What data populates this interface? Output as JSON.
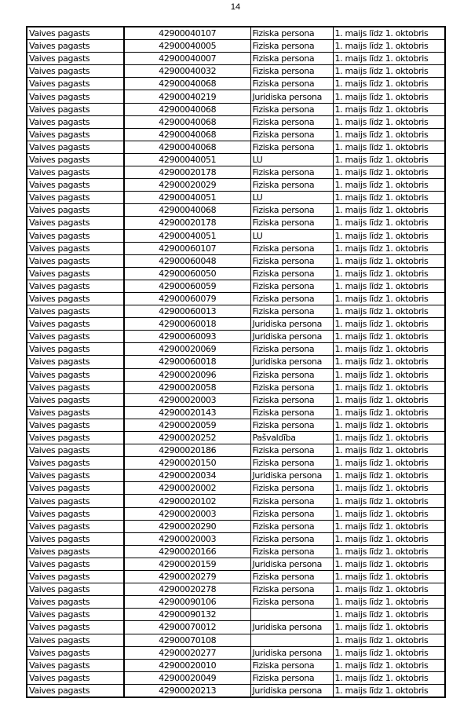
{
  "page_number": "14",
  "table": {
    "rows": [
      [
        "Vaives pagasts",
        "42900040107",
        "Fiziska persona",
        "1. maijs līdz 1. oktobris"
      ],
      [
        "Vaives pagasts",
        "42900040005",
        "Fiziska persona",
        "1. maijs līdz 1. oktobris"
      ],
      [
        "Vaives pagasts",
        "42900040007",
        "Fiziska persona",
        "1. maijs līdz 1. oktobris"
      ],
      [
        "Vaives pagasts",
        "42900040032",
        "Fiziska persona",
        "1. maijs līdz 1. oktobris"
      ],
      [
        "Vaives pagasts",
        "42900040068",
        "Fiziska persona",
        "1. maijs līdz 1. oktobris"
      ],
      [
        "Vaives pagasts",
        "42900040219",
        "Juridiska persona",
        "1. maijs līdz 1. oktobris"
      ],
      [
        "Vaives pagasts",
        "42900040068",
        "Fiziska persona",
        "1. maijs līdz 1. oktobris"
      ],
      [
        "Vaives pagasts",
        "42900040068",
        "Fiziska persona",
        "1. maijs līdz 1. oktobris"
      ],
      [
        "Vaives pagasts",
        "42900040068",
        "Fiziska persona",
        "1. maijs līdz 1. oktobris"
      ],
      [
        "Vaives pagasts",
        "42900040068",
        "Fiziska persona",
        "1. maijs līdz 1. oktobris"
      ],
      [
        "Vaives pagasts",
        "42900040051",
        "LU",
        "1. maijs līdz 1. oktobris"
      ],
      [
        "Vaives pagasts",
        "42900020178",
        "Fiziska persona",
        "1. maijs līdz 1. oktobris"
      ],
      [
        "Vaives pagasts",
        "42900020029",
        "Fiziska persona",
        "1. maijs līdz 1. oktobris"
      ],
      [
        "Vaives pagasts",
        "42900040051",
        "LU",
        "1. maijs līdz 1. oktobris"
      ],
      [
        "Vaives pagasts",
        "42900040068",
        "Fiziska persona",
        "1. maijs līdz 1. oktobris"
      ],
      [
        "Vaives pagasts",
        "42900020178",
        "Fiziska persona",
        "1. maijs līdz 1. oktobris"
      ],
      [
        "Vaives pagasts",
        "42900040051",
        "LU",
        "1. maijs līdz 1. oktobris"
      ],
      [
        "Vaives pagasts",
        "42900060107",
        "Fiziska persona",
        "1. maijs līdz 1. oktobris"
      ],
      [
        "Vaives pagasts",
        "42900060048",
        "Fiziska persona",
        "1. maijs līdz 1. oktobris"
      ],
      [
        "Vaives pagasts",
        "42900060050",
        "Fiziska persona",
        "1. maijs līdz 1. oktobris"
      ],
      [
        "Vaives pagasts",
        "42900060059",
        "Fiziska persona",
        "1. maijs līdz 1. oktobris"
      ],
      [
        "Vaives pagasts",
        "42900060079",
        "Fiziska persona",
        "1. maijs līdz 1. oktobris"
      ],
      [
        "Vaives pagasts",
        "42900060013",
        "Fiziska persona",
        "1. maijs līdz 1. oktobris"
      ],
      [
        "Vaives pagasts",
        "42900060018",
        "Juridiska persona",
        "1. maijs līdz 1. oktobris"
      ],
      [
        "Vaives pagasts",
        "42900060093",
        "Juridiska persona",
        "1. maijs līdz 1. oktobris"
      ],
      [
        "Vaives pagasts",
        "42900020069",
        "Fiziska persona",
        "1. maijs līdz 1. oktobris"
      ],
      [
        "Vaives pagasts",
        "42900060018",
        "Juridiska persona",
        "1. maijs līdz 1. oktobris"
      ],
      [
        "Vaives pagasts",
        "42900020096",
        "Fiziska persona",
        "1. maijs līdz 1. oktobris"
      ],
      [
        "Vaives pagasts",
        "42900020058",
        "Fiziska persona",
        "1. maijs līdz 1. oktobris"
      ],
      [
        "Vaives pagasts",
        "42900020003",
        "Fiziska persona",
        "1. maijs līdz 1. oktobris"
      ],
      [
        "Vaives pagasts",
        "42900020143",
        "Fiziska persona",
        "1. maijs līdz 1. oktobris"
      ],
      [
        "Vaives pagasts",
        "42900020059",
        "Fiziska persona",
        "1. maijs līdz 1. oktobris"
      ],
      [
        "Vaives pagasts",
        "42900020252",
        "Pašvaldība",
        "1. maijs līdz 1. oktobris"
      ],
      [
        "Vaives pagasts",
        "42900020186",
        "Fiziska persona",
        "1. maijs līdz 1. oktobris"
      ],
      [
        "Vaives pagasts",
        "42900020150",
        "Fiziska persona",
        "1. maijs līdz 1. oktobris"
      ],
      [
        "Vaives pagasts",
        "42900020034",
        "Juridiska persona",
        "1. maijs līdz 1. oktobris"
      ],
      [
        "Vaives pagasts",
        "42900020002",
        "Fiziska persona",
        "1. maijs līdz 1. oktobris"
      ],
      [
        "Vaives pagasts",
        "42900020102",
        "Fiziska persona",
        "1. maijs līdz 1. oktobris"
      ],
      [
        "Vaives pagasts",
        "42900020003",
        "Fiziska persona",
        "1. maijs līdz 1. oktobris"
      ],
      [
        "Vaives pagasts",
        "42900020290",
        "Fiziska persona",
        "1. maijs līdz 1. oktobris"
      ],
      [
        "Vaives pagasts",
        "42900020003",
        "Fiziska persona",
        "1. maijs līdz 1. oktobris"
      ],
      [
        "Vaives pagasts",
        "42900020166",
        "Fiziska persona",
        "1. maijs līdz 1. oktobris"
      ],
      [
        "Vaives pagasts",
        "42900020159",
        "Juridiska persona",
        "1. maijs līdz 1. oktobris"
      ],
      [
        "Vaives pagasts",
        "42900020279",
        "Fiziska persona",
        "1. maijs līdz 1. oktobris"
      ],
      [
        "Vaives pagasts",
        "42900020278",
        "Fiziska persona",
        "1. maijs līdz 1. oktobris"
      ],
      [
        "Vaives pagasts",
        "42900090106",
        "Fiziska persona",
        "1. maijs līdz 1. oktobris"
      ],
      [
        "Vaives pagasts",
        "42900090132",
        "",
        "1. maijs līdz 1. oktobris"
      ],
      [
        "Vaives pagasts",
        "42900070012",
        "Juridiska persona",
        "1. maijs līdz 1. oktobris"
      ],
      [
        "Vaives pagasts",
        "42900070108",
        "",
        "1. maijs līdz 1. oktobris"
      ],
      [
        "Vaives pagasts",
        "42900020277",
        "Juridiska persona",
        "1. maijs līdz 1. oktobris"
      ],
      [
        "Vaives pagasts",
        "42900020010",
        "Fiziska persona",
        "1. maijs līdz 1. oktobris"
      ],
      [
        "Vaives pagasts",
        "42900020049",
        "Fiziska persona",
        "1. maijs līdz 1. oktobris"
      ],
      [
        "Vaives pagasts",
        "42900020213",
        "Juridiska persona",
        "1. maijs līdz 1. oktobris"
      ]
    ]
  }
}
